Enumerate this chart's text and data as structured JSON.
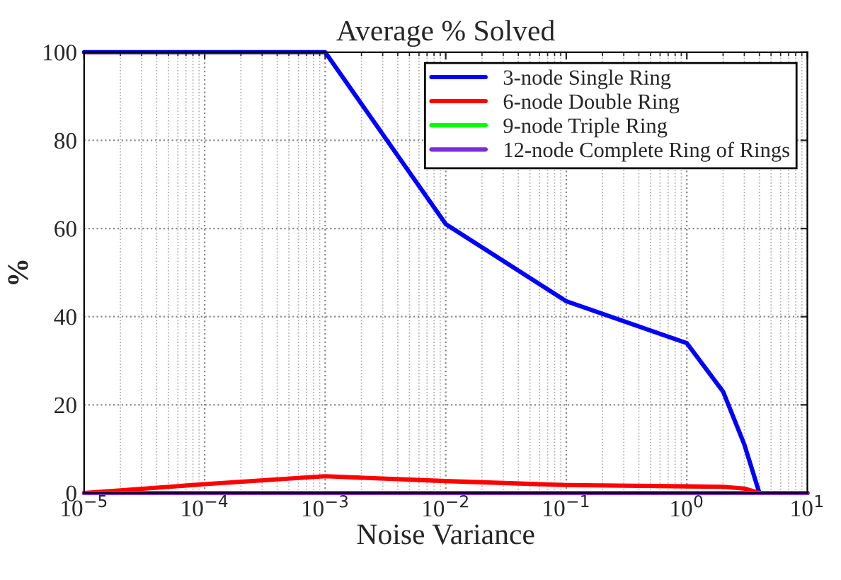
{
  "chart_data": {
    "type": "line",
    "title": "Average % Solved",
    "xlabel": "Noise Variance",
    "ylabel": "%",
    "x": [
      1e-05,
      0.0001,
      0.001,
      0.01,
      0.1,
      1,
      2,
      3,
      4,
      10
    ],
    "series": [
      {
        "name": "3-node Single Ring",
        "color": "#0000ff",
        "values": [
          100,
          100,
          100,
          61,
          43.5,
          34,
          23,
          11,
          0,
          0
        ]
      },
      {
        "name": "6-node Double Ring",
        "color": "#ff0000",
        "values": [
          0,
          2,
          3.8,
          2.7,
          1.8,
          1.5,
          1.4,
          1,
          0,
          0
        ]
      },
      {
        "name": "9-node Triple Ring",
        "color": "#00ff00",
        "values": [
          null,
          null,
          null,
          null,
          null,
          null,
          null,
          null,
          null,
          null
        ]
      },
      {
        "name": "12-node Complete Ring of Rings",
        "color": "#7b2fd6",
        "values": [
          0,
          0,
          0,
          0,
          0,
          0,
          0,
          0,
          0,
          0
        ]
      }
    ],
    "log": "x",
    "xlim": [
      1e-05,
      10
    ],
    "ylim": [
      0,
      100
    ],
    "xticks": [
      {
        "value": 1e-05,
        "label": "10$^{−5}$"
      },
      {
        "value": 0.0001,
        "label": "10$^{−4}$"
      },
      {
        "value": 0.001,
        "label": "10$^{−3}$"
      },
      {
        "value": 0.01,
        "label": "10$^{−2}$"
      },
      {
        "value": 0.1,
        "label": "10$^{−1}$"
      },
      {
        "value": 1,
        "label": "10$^{0}$"
      },
      {
        "value": 10,
        "label": "10$^{1}$"
      }
    ],
    "yticks": [
      0,
      20,
      40,
      60,
      80,
      100
    ],
    "grid": true,
    "legend": "top right",
    "line_style": "solid",
    "marker": "none"
  }
}
